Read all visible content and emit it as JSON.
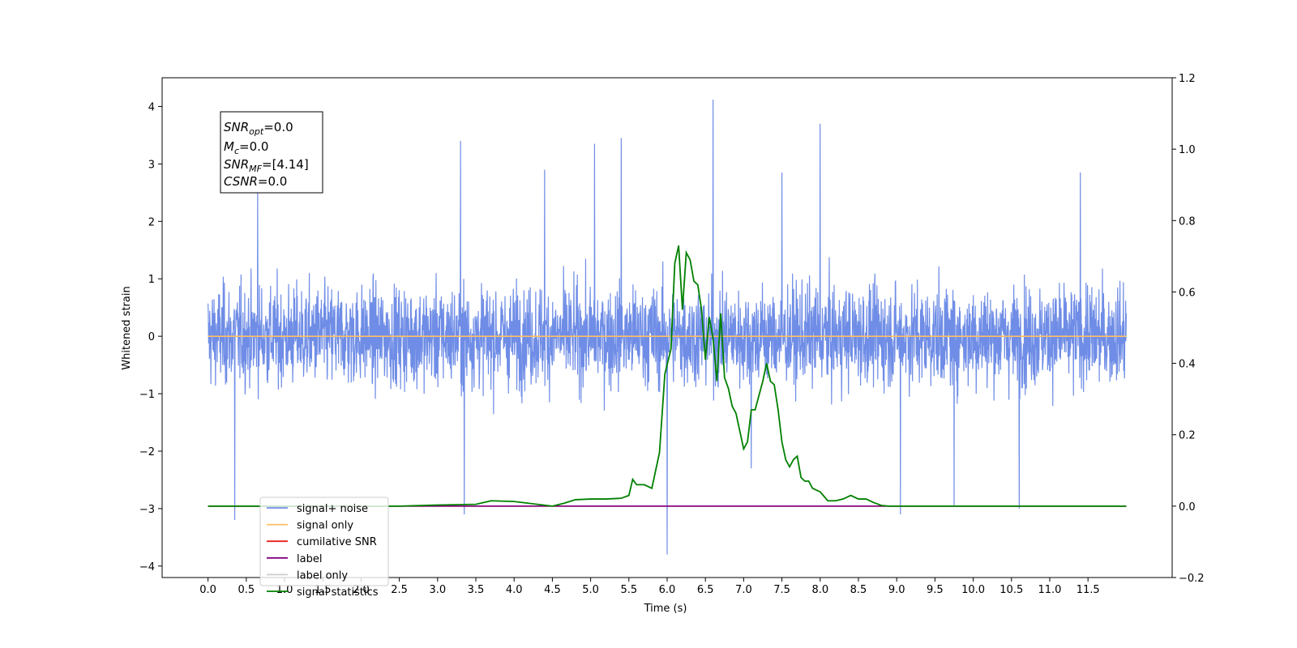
{
  "chart_data": {
    "type": "line",
    "xlabel": "Time (s)",
    "ylabel_left": "Whitened strain",
    "ylabel_right": "",
    "xlim": [
      -0.6,
      12.6
    ],
    "ylim_left": [
      -4.2,
      4.5
    ],
    "ylim_right": [
      -0.2,
      1.2
    ],
    "x_ticks": [
      "0.0",
      "0.5",
      "1.0",
      "1.5",
      "2.0",
      "2.5",
      "3.0",
      "3.5",
      "4.0",
      "4.5",
      "5.0",
      "5.5",
      "6.0",
      "6.5",
      "7.0",
      "7.5",
      "8.0",
      "8.5",
      "9.0",
      "9.5",
      "10.0",
      "10.5",
      "11.0",
      "11.5"
    ],
    "x_tick_values": [
      0,
      0.5,
      1,
      1.5,
      2,
      2.5,
      3,
      3.5,
      4,
      4.5,
      5,
      5.5,
      6,
      6.5,
      7,
      7.5,
      8,
      8.5,
      9,
      9.5,
      10,
      10.5,
      11,
      11.5
    ],
    "y_ticks_left": [
      "−4",
      "−3",
      "−2",
      "−1",
      "0",
      "1",
      "2",
      "3",
      "4"
    ],
    "y_tick_values_left": [
      -4,
      -3,
      -2,
      -1,
      0,
      1,
      2,
      3,
      4
    ],
    "y_ticks_right": [
      "−0.2",
      "0.0",
      "0.2",
      "0.4",
      "0.6",
      "0.8",
      "1.0",
      "1.2"
    ],
    "y_tick_values_right": [
      -0.2,
      0,
      0.2,
      0.4,
      0.6,
      0.8,
      1.0,
      1.2
    ],
    "grid": false,
    "legend_position": "lower-left",
    "info_box": {
      "line1_main": "SNR",
      "line1_sub": "opt",
      "line1_value": "=0.0",
      "line2_main": "M",
      "line2_sub": "c",
      "line2_value": "=0.0",
      "line3_main": "SNR",
      "line3_sub": "MF",
      "line3_value": "=[4.14]",
      "line4_main": "CSNR",
      "line4_value": "=0.0"
    },
    "series": [
      {
        "name": "signal+ noise",
        "color": "#6f8de6",
        "axis": "left",
        "kind": "noise",
        "x_range": [
          0,
          12
        ],
        "typical_amplitude": 1.6,
        "spikes": [
          [
            0.35,
            -3.2
          ],
          [
            0.65,
            2.55
          ],
          [
            3.3,
            3.4
          ],
          [
            3.35,
            -3.1
          ],
          [
            5.05,
            3.35
          ],
          [
            5.4,
            3.45
          ],
          [
            6.0,
            -3.8
          ],
          [
            6.6,
            4.12
          ],
          [
            7.1,
            -2.3
          ],
          [
            8.0,
            3.7
          ],
          [
            9.05,
            -3.1
          ],
          [
            11.4,
            2.85
          ],
          [
            10.6,
            -3.0
          ],
          [
            9.75,
            -2.95
          ],
          [
            4.4,
            2.9
          ],
          [
            7.5,
            2.85
          ]
        ]
      },
      {
        "name": "signal only",
        "color": "#ffbf66",
        "axis": "left",
        "x": [
          0,
          12
        ],
        "y": [
          0,
          0
        ]
      },
      {
        "name": "cumilative SNR",
        "color": "#e8201c",
        "axis": "right",
        "x": [
          0,
          12
        ],
        "y": [
          0,
          0
        ]
      },
      {
        "name": "label",
        "color": "#800080",
        "axis": "right",
        "x": [
          0,
          12
        ],
        "y": [
          0,
          0
        ]
      },
      {
        "name": "label only",
        "color": "#cccccc",
        "axis": "right",
        "x": [],
        "y": []
      },
      {
        "name": "signal statistics",
        "color": "#008000",
        "axis": "right",
        "x": [
          0,
          2.5,
          3.0,
          3.5,
          3.7,
          4.0,
          4.5,
          4.65,
          4.8,
          5.0,
          5.2,
          5.4,
          5.5,
          5.55,
          5.6,
          5.7,
          5.8,
          5.9,
          5.97,
          6.05,
          6.1,
          6.15,
          6.2,
          6.25,
          6.3,
          6.35,
          6.4,
          6.45,
          6.5,
          6.55,
          6.6,
          6.65,
          6.7,
          6.75,
          6.8,
          6.85,
          6.9,
          6.95,
          7.0,
          7.05,
          7.1,
          7.15,
          7.2,
          7.25,
          7.3,
          7.35,
          7.4,
          7.45,
          7.5,
          7.55,
          7.6,
          7.65,
          7.7,
          7.75,
          7.8,
          7.85,
          7.9,
          7.95,
          8.0,
          8.1,
          8.2,
          8.3,
          8.4,
          8.5,
          8.6,
          8.7,
          8.8,
          8.9,
          9.0,
          9.1,
          9.5,
          12
        ],
        "y": [
          0,
          0,
          0.003,
          0.005,
          0.015,
          0.013,
          0.0,
          0.008,
          0.018,
          0.02,
          0.02,
          0.022,
          0.03,
          0.075,
          0.06,
          0.06,
          0.05,
          0.15,
          0.37,
          0.44,
          0.68,
          0.73,
          0.55,
          0.71,
          0.69,
          0.63,
          0.62,
          0.55,
          0.41,
          0.53,
          0.47,
          0.35,
          0.54,
          0.36,
          0.33,
          0.28,
          0.26,
          0.21,
          0.16,
          0.18,
          0.27,
          0.27,
          0.31,
          0.35,
          0.4,
          0.35,
          0.34,
          0.27,
          0.18,
          0.13,
          0.11,
          0.13,
          0.14,
          0.08,
          0.07,
          0.07,
          0.05,
          0.045,
          0.04,
          0.015,
          0.015,
          0.02,
          0.03,
          0.02,
          0.02,
          0.01,
          0.002,
          0.0,
          0.0,
          0.0,
          0.0,
          0.0
        ]
      }
    ]
  }
}
